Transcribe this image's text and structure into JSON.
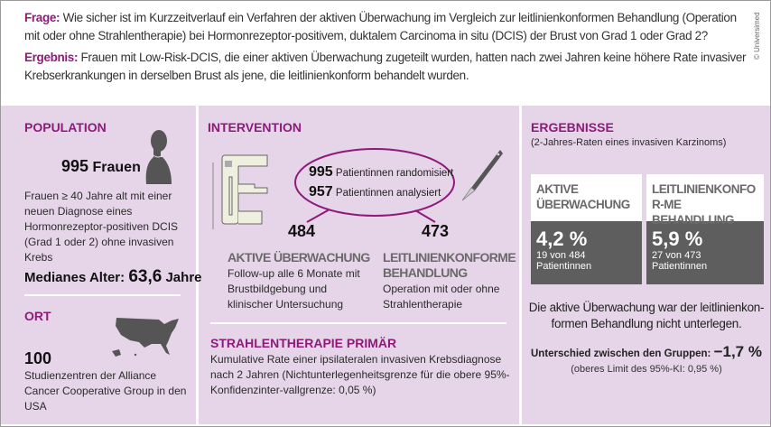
{
  "header": {
    "question_label": "Frage:",
    "question": "Wie sicher ist im Kurzzeitverlauf ein Verfahren der aktiven Überwachung im Vergleich zur leitlinienkonformen Behandlung (Operation mit oder ohne Strahlentherapie) bei Hormonrezeptor-positivem, duktalem Carcinoma in situ (DCIS) der Brust von Grad 1 oder Grad 2?",
    "result_label": "Ergebnis:",
    "result": "Frauen mit Low-Risk-DCIS, die einer aktiven Überwachung zugeteilt wurden, hatten nach zwei Jahren keine höhere Rate invasiver Krebserkrankungen in derselben Brust als jene, die leitlinienkonform behandelt wurden.",
    "copyright": "© Universimed"
  },
  "population": {
    "title": "POPULATION",
    "count": "995",
    "count_unit": "Frauen",
    "description": "Frauen ≥ 40 Jahre alt mit einer neuen Diagnose eines Hormonrezeptor-positiven DCIS (Grad 1 oder 2) ohne invasiven Krebs",
    "median_label": "Medianes Alter:",
    "median_value": "63,6",
    "median_unit": "Jahre"
  },
  "location": {
    "title": "ORT",
    "count": "100",
    "description": "Studienzentren der Alliance Cancer Cooperative Group in den USA"
  },
  "intervention": {
    "title": "INTERVENTION",
    "randomized_n": "995",
    "randomized_label": "Patientinnen randomisiert",
    "analyzed_n": "957",
    "analyzed_label": "Patientinnen analysiert",
    "arm1_n": "484",
    "arm1_title": "AKTIVE ÜBERWACHUNG",
    "arm1_desc": "Follow-up alle 6 Monate mit Brustbildgebung und klinischer Untersuchung",
    "arm2_n": "473",
    "arm2_title": "LEITLINIENKONFORME BEHANDLUNG",
    "arm2_desc": "Operation mit oder ohne Strahlentherapie",
    "endpoint_title": "STRAHLENTHERAPIE PRIMÄR",
    "endpoint_desc": "Kumulative Rate einer ipsilateralen invasiven Krebsdiagnose nach 2 Jahren (Nichtunterlegenheitsgrenze für die obere 95%-Konfidenzinter-vallgrenze: 0,05 %)"
  },
  "results": {
    "title": "ERGEBNISSE",
    "subtitle": "(2-Jahres-Raten eines invasiven Karzinoms)",
    "boxes": [
      {
        "title": "AKTIVE ÜBERWACHUNG",
        "value": "4,2 %",
        "detail": "19 von 484 Patientinnen"
      },
      {
        "title": "LEITLINIENKONFOR-ME BEHANDLUNG",
        "value": "5,9 %",
        "detail": "27 von 473 Patientinnen"
      }
    ],
    "conclusion": "Die aktive Überwachung war der leitlinienkon-formen Behandlung nicht unterlegen.",
    "difference_label": "Unterschied zwischen den Gruppen:",
    "difference_value": "−1,7 %",
    "ci": "(oberes Limit des 95%-KI: 0,95 %)"
  },
  "colors": {
    "accent": "#8e1b7a",
    "panel": "#e6d4e8",
    "box_dark": "#5e5e5e"
  }
}
